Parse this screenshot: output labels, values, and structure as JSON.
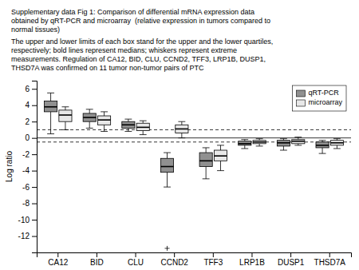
{
  "chart_data": {
    "type": "box",
    "title": [
      "Supplementary data Fig 1: Comparison of differential mRNA expression data",
      "obtained by qRT-PCR and microarray  (relative expression in tumors compared to",
      "normal tissues)"
    ],
    "subtitle": [
      "The upper and lower limits of each box stand for the upper and the lower quartiles,",
      "respectively; bold lines represent medians; whiskers represent extreme",
      "measurements. Regulation of CA12, BID, CLU, CCND2, TFF3, LRP1B, DUSP1,",
      "THSD7A was confirmed on 11 tumor non-tumor pairs of PTC"
    ],
    "y_label": "Log ratio",
    "categories": [
      "CA12",
      "BID",
      "CLU",
      "CCND2",
      "TFF3",
      "LRP1B",
      "DUSP1",
      "THSD7A"
    ],
    "series": [
      {
        "name": "qRT-PCR",
        "color": "#909090",
        "values": [
          {
            "med": 3.8,
            "q1": 3.2,
            "q3": 4.5,
            "whislo": 0.5,
            "whishi": 5.5,
            "fliers": []
          },
          {
            "med": 2.5,
            "q1": 2.0,
            "q3": 3.0,
            "whislo": 1.2,
            "whishi": 3.5,
            "fliers": []
          },
          {
            "med": 1.6,
            "q1": 1.2,
            "q3": 2.0,
            "whislo": 0.8,
            "whishi": 2.3,
            "fliers": []
          },
          {
            "med": -3.5,
            "q1": -4.2,
            "q3": -2.5,
            "whislo": -6.0,
            "whishi": -1.8,
            "fliers": [
              -13.5
            ]
          },
          {
            "med": -2.8,
            "q1": -3.5,
            "q3": -1.8,
            "whislo": -5.0,
            "whishi": -1.2,
            "fliers": []
          },
          {
            "med": -0.7,
            "q1": -0.9,
            "q3": -0.4,
            "whislo": -1.3,
            "whishi": -0.2,
            "fliers": []
          },
          {
            "med": -0.6,
            "q1": -1.0,
            "q3": -0.3,
            "whislo": -1.5,
            "whishi": -0.1,
            "fliers": []
          },
          {
            "med": -0.9,
            "q1": -1.2,
            "q3": -0.5,
            "whislo": -1.9,
            "whishi": -0.3,
            "fliers": []
          }
        ]
      },
      {
        "name": "microarray",
        "color": "#e8e8e8",
        "values": [
          {
            "med": 2.8,
            "q1": 2.0,
            "q3": 3.4,
            "whislo": 1.0,
            "whishi": 3.8,
            "fliers": []
          },
          {
            "med": 2.2,
            "q1": 1.6,
            "q3": 2.7,
            "whislo": 0.8,
            "whishi": 3.2,
            "fliers": []
          },
          {
            "med": 1.3,
            "q1": 0.9,
            "q3": 1.8,
            "whislo": 0.4,
            "whishi": 2.1,
            "fliers": []
          },
          {
            "med": 1.1,
            "q1": 0.6,
            "q3": 1.6,
            "whislo": 0.0,
            "whishi": 2.0,
            "fliers": []
          },
          {
            "med": -2.2,
            "q1": -2.8,
            "q3": -1.5,
            "whislo": -4.0,
            "whishi": -0.9,
            "fliers": []
          },
          {
            "med": -0.5,
            "q1": -0.7,
            "q3": -0.3,
            "whislo": -1.0,
            "whishi": -0.1,
            "fliers": []
          },
          {
            "med": -0.4,
            "q1": -0.7,
            "q3": -0.2,
            "whislo": -0.9,
            "whishi": 0.1,
            "fliers": []
          },
          {
            "med": -0.6,
            "q1": -0.9,
            "q3": -0.3,
            "whislo": -1.3,
            "whishi": -0.1,
            "fliers": []
          }
        ]
      }
    ],
    "reference_lines": [
      {
        "value": 0.0,
        "line_style": "solid"
      },
      {
        "value": 1.0,
        "line_style": "dashed"
      },
      {
        "value": -0.5,
        "line_style": "dashed"
      }
    ],
    "marker": "plus",
    "ylim": [
      -14,
      7
    ],
    "yticks": [
      -12,
      -10,
      -8,
      -6,
      -4,
      -2,
      0,
      2,
      4,
      6
    ],
    "legend": "upper right"
  }
}
